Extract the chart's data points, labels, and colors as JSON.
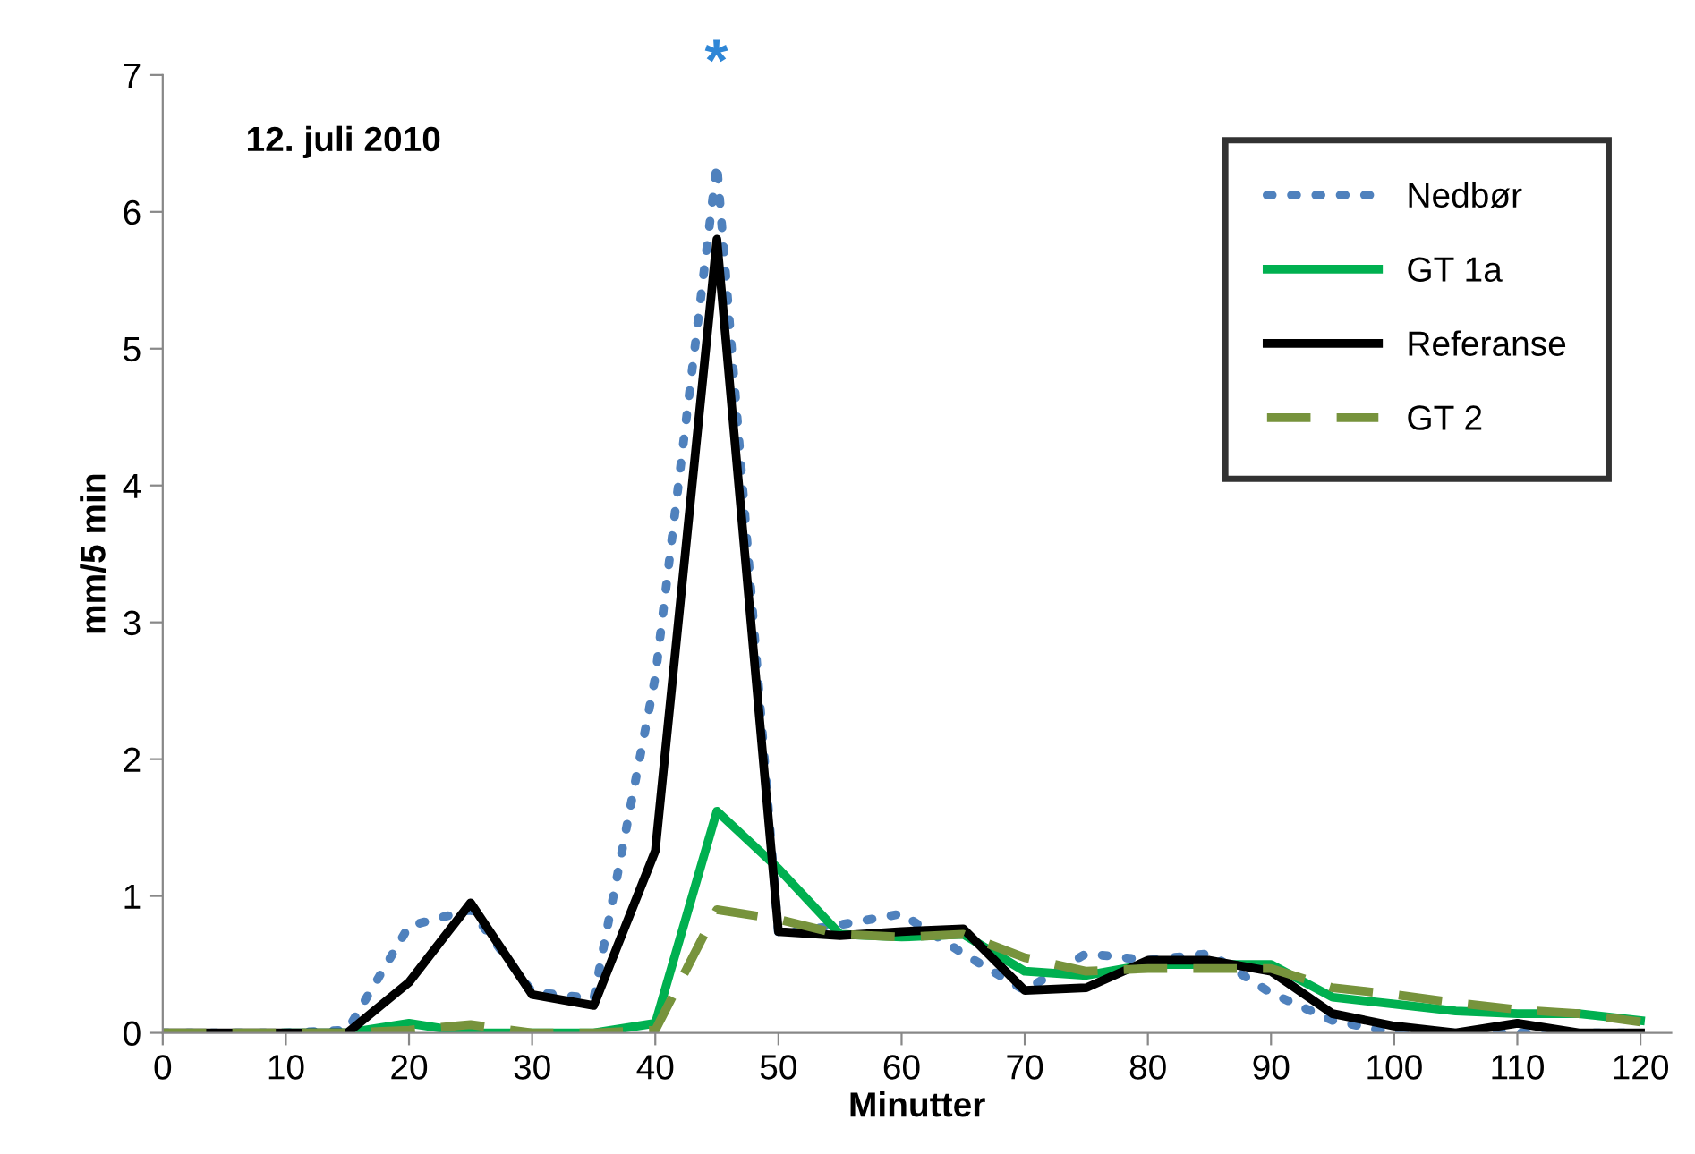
{
  "chart_data": {
    "type": "line",
    "title": "12. juli 2010",
    "xlabel": "Minutter",
    "ylabel": "mm/5 min",
    "x": [
      0,
      5,
      10,
      15,
      20,
      25,
      30,
      35,
      40,
      45,
      50,
      55,
      60,
      65,
      70,
      75,
      80,
      85,
      90,
      95,
      100,
      105,
      110,
      115,
      120
    ],
    "series": [
      {
        "name": "Nedbør",
        "color": "#4f81bd",
        "line_style": "dotted",
        "values": [
          0,
          0,
          0,
          0.02,
          0.78,
          0.9,
          0.3,
          0.25,
          2.6,
          6.35,
          0.72,
          0.79,
          0.87,
          0.58,
          0.31,
          0.58,
          0.53,
          0.58,
          0.29,
          0.09,
          0.0,
          0.0,
          0.0,
          0.0,
          0.0
        ]
      },
      {
        "name": "GT 1a",
        "color": "#00b050",
        "line_style": "solid",
        "values": [
          null,
          null,
          0,
          0,
          0.07,
          0.0,
          0,
          0,
          0.07,
          1.62,
          1.2,
          0.72,
          0.7,
          0.72,
          0.45,
          0.42,
          0.5,
          0.5,
          0.5,
          0.26,
          0.21,
          0.16,
          0.14,
          0.14,
          0.09
        ]
      },
      {
        "name": "Referanse",
        "color": "#000000",
        "line_style": "solid",
        "values": [
          0,
          0,
          0,
          0,
          0.37,
          0.95,
          0.28,
          0.2,
          1.33,
          5.8,
          0.74,
          0.71,
          0.74,
          0.76,
          0.31,
          0.33,
          0.53,
          0.53,
          0.45,
          0.14,
          0.05,
          0.0,
          0.07,
          0.0,
          0.0
        ]
      },
      {
        "name": "GT 2",
        "color": "#77933c",
        "line_style": "dashed",
        "values": [
          0,
          0,
          0,
          0,
          0.02,
          0.06,
          0,
          0,
          0.02,
          0.9,
          0.83,
          0.72,
          0.7,
          0.72,
          0.55,
          0.45,
          0.47,
          0.47,
          0.47,
          0.33,
          0.28,
          0.22,
          0.17,
          0.14,
          0.08
        ]
      }
    ],
    "xlim": [
      0,
      122.5
    ],
    "ylim": [
      0,
      7
    ],
    "xticks": [
      0,
      10,
      20,
      30,
      40,
      50,
      60,
      70,
      80,
      90,
      100,
      110,
      120
    ],
    "yticks": [
      0,
      1,
      2,
      3,
      4,
      5,
      6,
      7
    ],
    "annotations": [
      "*"
    ],
    "grid": false,
    "legend": "top right",
    "marker": "none"
  }
}
